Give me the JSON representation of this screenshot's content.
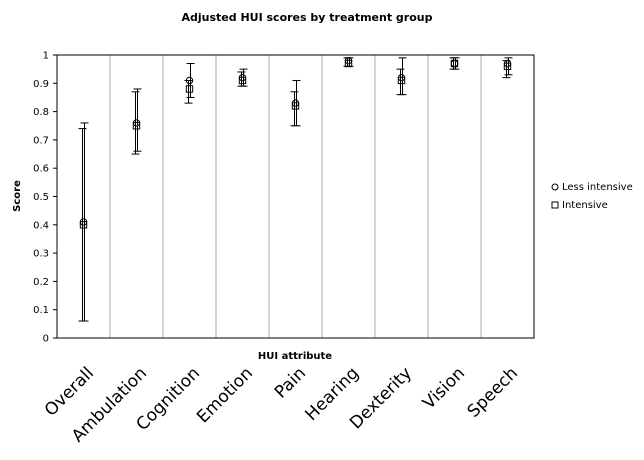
{
  "chart_data": {
    "type": "scatter",
    "title": "Adjusted HUI scores by treatment group",
    "xlabel": "HUI attribute",
    "ylabel": "Score",
    "ylim": [
      0,
      1
    ],
    "yticks": [
      "0",
      "0.1",
      "0.2",
      "0.3",
      "0.4",
      "0.5",
      "0.6",
      "0.7",
      "0.8",
      "0.9",
      "1"
    ],
    "categories": [
      "Overall",
      "Ambulation",
      "Cognition",
      "Emotion",
      "Pain",
      "Hearing",
      "Dexterity",
      "Vision",
      "Speech"
    ],
    "grid": "vertical lines between categories",
    "legend_position": "right",
    "series": [
      {
        "name": "Less intensive",
        "marker": "circle",
        "values": [
          0.41,
          0.76,
          0.91,
          0.92,
          0.83,
          0.98,
          0.92,
          0.97,
          0.97
        ],
        "ci_low": [
          0.06,
          0.66,
          0.85,
          0.89,
          0.75,
          0.96,
          0.86,
          0.95,
          0.93
        ],
        "ci_high": [
          0.76,
          0.88,
          0.97,
          0.95,
          0.91,
          0.99,
          0.99,
          0.99,
          0.99
        ]
      },
      {
        "name": "Intensive",
        "marker": "square",
        "values": [
          0.4,
          0.75,
          0.88,
          0.91,
          0.82,
          0.97,
          0.91,
          0.97,
          0.96
        ],
        "ci_low": [
          0.06,
          0.65,
          0.83,
          0.89,
          0.75,
          0.96,
          0.86,
          0.95,
          0.92
        ],
        "ci_high": [
          0.74,
          0.87,
          0.91,
          0.94,
          0.87,
          0.99,
          0.95,
          0.99,
          0.98
        ]
      }
    ]
  }
}
